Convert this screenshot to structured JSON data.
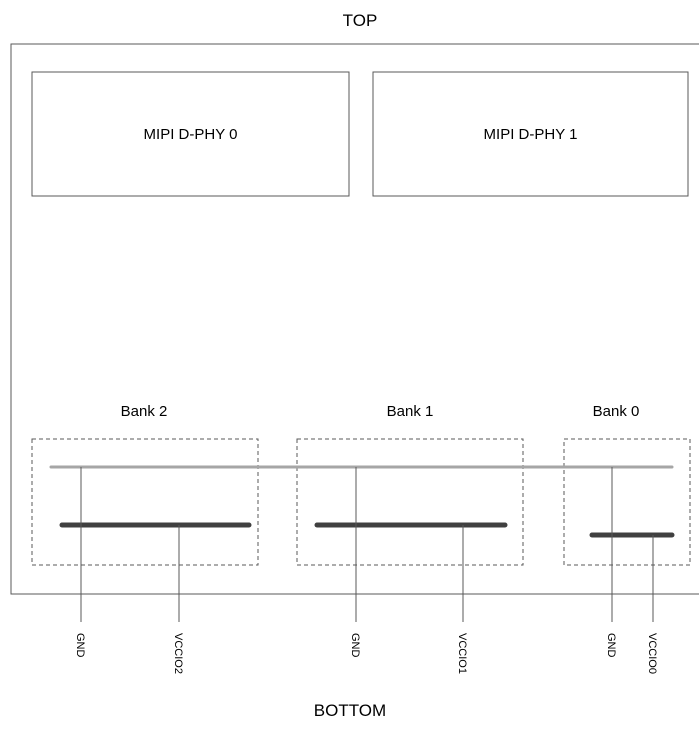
{
  "edges": {
    "top": "TOP",
    "bottom": "BOTTOM"
  },
  "phy_blocks": [
    {
      "label": "MIPI D-PHY 0"
    },
    {
      "label": "MIPI D-PHY 1"
    }
  ],
  "banks": [
    {
      "label": "Bank 2",
      "pins": {
        "gnd": "GND",
        "vccio": "VCCIO2"
      }
    },
    {
      "label": "Bank 1",
      "pins": {
        "gnd": "GND",
        "vccio": "VCCIO1"
      }
    },
    {
      "label": "Bank 0",
      "pins": {
        "gnd": "GND",
        "vccio": "VCCIO0"
      }
    }
  ],
  "colors": {
    "outline": "#595959",
    "gnd_rail": "#a6a6a6",
    "vccio_rail": "#404040",
    "pin_line": "#595959"
  }
}
